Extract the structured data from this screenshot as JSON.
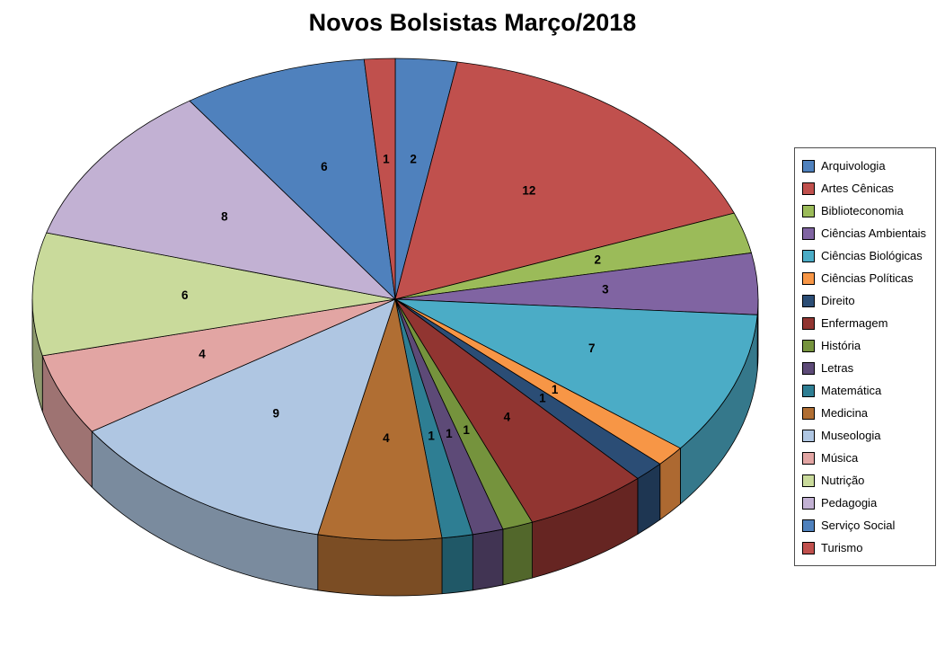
{
  "title": "Novos Bolsistas Março/2018",
  "chart_data": {
    "type": "pie",
    "style": "3d",
    "title": "Novos Bolsistas Março/2018",
    "legend_position": "right",
    "data_labels": "values",
    "start_angle_deg": 0,
    "direction": "clockwise",
    "categories": [
      "Arquivologia",
      "Artes Cênicas",
      "Biblioteconomia",
      "Ciências Ambientais",
      "Ciências Biológicas",
      "Ciências Políticas",
      "Direito",
      "Enfermagem",
      "História",
      "Letras",
      "Matemática",
      "Medicina",
      "Museologia",
      "Música",
      "Nutrição",
      "Pedagogia",
      "Serviço Social",
      "Turismo"
    ],
    "values": [
      2,
      12,
      2,
      3,
      7,
      1,
      1,
      4,
      1,
      1,
      1,
      4,
      9,
      4,
      6,
      8,
      6,
      1
    ],
    "colors": [
      "#4F81BD",
      "#C0504D",
      "#9BBB59",
      "#8064A2",
      "#4BACC6",
      "#F79646",
      "#2B4D75",
      "#913531",
      "#75933D",
      "#5D4A77",
      "#2E7E93",
      "#B06E33",
      "#AFC6E2",
      "#E2A5A3",
      "#C9DA9B",
      "#C2B1D3",
      "#4F81BD",
      "#C0504D"
    ],
    "background_color": "#FFFFFF",
    "label_color": "#000000"
  }
}
